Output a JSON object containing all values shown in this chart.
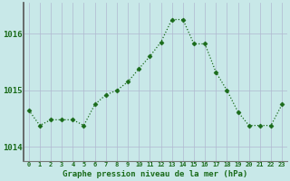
{
  "x": [
    0,
    1,
    2,
    3,
    4,
    5,
    6,
    7,
    8,
    9,
    10,
    11,
    12,
    13,
    14,
    15,
    16,
    17,
    18,
    19,
    20,
    21,
    22,
    23
  ],
  "y": [
    1014.65,
    1014.38,
    1014.48,
    1014.48,
    1014.48,
    1014.38,
    1014.75,
    1014.92,
    1015.0,
    1015.15,
    1015.38,
    1015.6,
    1015.85,
    1016.25,
    1016.25,
    1015.82,
    1015.82,
    1015.32,
    1015.0,
    1014.62,
    1014.38,
    1014.38,
    1014.38,
    1014.75
  ],
  "line_color": "#1a6b1a",
  "marker": "D",
  "marker_size": 2.5,
  "bg_color": "#c8e8e8",
  "grid_color": "#b0b8d0",
  "xlabel": "Graphe pression niveau de la mer (hPa)",
  "xlabel_color": "#1a6b1a",
  "yticks": [
    1014,
    1015,
    1016
  ],
  "ylim": [
    1013.75,
    1016.55
  ],
  "xlim": [
    -0.5,
    23.5
  ],
  "xtick_labels": [
    "0",
    "1",
    "2",
    "3",
    "4",
    "5",
    "6",
    "7",
    "8",
    "9",
    "10",
    "11",
    "12",
    "13",
    "14",
    "15",
    "16",
    "17",
    "18",
    "19",
    "20",
    "21",
    "22",
    "23"
  ],
  "spine_color": "#777777",
  "left_spine_color": "#555555"
}
